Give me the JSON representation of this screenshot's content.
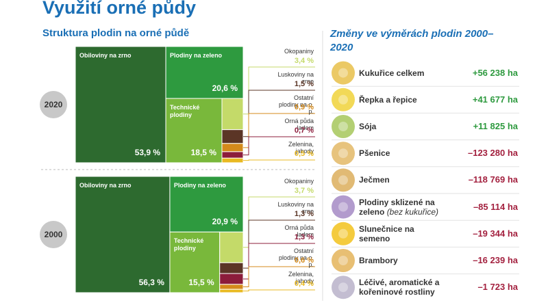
{
  "title": "Využití orné půdy",
  "left_title": "Struktura plodin na orné půdě",
  "chart_data": [
    {
      "type": "treemap",
      "label": "2020",
      "categories": [
        "Obiloviny na zrno",
        "Plodiny na zeleno",
        "Technické plodiny",
        "Okopaniny",
        "Luskoviny na zrno",
        "Ostatní plodiny na o. p.",
        "Orná půda ladem",
        "Zelenina, jahody"
      ],
      "values": [
        53.9,
        20.6,
        18.5,
        3.4,
        1.5,
        0.9,
        0.7,
        0.5
      ],
      "value_labels": [
        "53,9 %",
        "20,6 %",
        "18,5 %",
        "3,4 %",
        "1,5 %",
        "0,9 %",
        "0,7 %",
        "0,5 %"
      ],
      "colors": [
        "#2d6a2f",
        "#2e9a3f",
        "#79b83b",
        "#c4da69",
        "#5b3526",
        "#d48a1b",
        "#8c1c3b",
        "#e9b920"
      ]
    },
    {
      "type": "treemap",
      "label": "2000",
      "categories": [
        "Obiloviny na zrno",
        "Plodiny na zeleno",
        "Technické plodiny",
        "Okopaniny",
        "Luskoviny na zrno",
        "Orná půda ladem",
        "Ostatní plodiny na o. p.",
        "Zelenina, jahody"
      ],
      "values": [
        56.3,
        20.9,
        15.5,
        3.7,
        1.3,
        1.3,
        0.6,
        0.4
      ],
      "value_labels": [
        "56,3 %",
        "20,9 %",
        "15,5 %",
        "3,7 %",
        "1,3 %",
        "1,3 %",
        "0,6 %",
        "0,4 %"
      ],
      "colors": [
        "#2d6a2f",
        "#2e9a3f",
        "#79b83b",
        "#c4da69",
        "#5b3526",
        "#8c1c3b",
        "#d48a1b",
        "#e9b920"
      ]
    }
  ],
  "changes": {
    "title": "Změny ve výměrách plodin 2000–2020",
    "items": [
      {
        "name": "Kukuřice celkem",
        "value": "+56 238 ha",
        "color": "#2e9a3f",
        "icon": "#e8c04a"
      },
      {
        "name": "Řepka a řepice",
        "value": "+41 677 ha",
        "color": "#2e9a3f",
        "icon": "#f0d23a"
      },
      {
        "name": "Sója",
        "value": "+11 825 ha",
        "color": "#2e9a3f",
        "icon": "#a6c75a"
      },
      {
        "name": "Pšenice",
        "value": "–123 280 ha",
        "color": "#a3213f",
        "icon": "#e3b866"
      },
      {
        "name": "Ječmen",
        "value": "–118 769 ha",
        "color": "#a3213f",
        "icon": "#dcae5c"
      },
      {
        "name": "Plodiny sklizené na zeleno",
        "note": "(bez kukuřice)",
        "value": "–85 114 ha",
        "color": "#a3213f",
        "icon": "#a48ac4"
      },
      {
        "name": "Slunečnice na semeno",
        "value": "–19 344 ha",
        "color": "#a3213f",
        "icon": "#f2c21c"
      },
      {
        "name": "Brambory",
        "value": "–16 239 ha",
        "color": "#a3213f",
        "icon": "#e4b45a"
      },
      {
        "name": "Léčivé, aromatické a kořeninové rostliny",
        "value": "–1 723 ha",
        "color": "#a3213f",
        "icon": "#b9b2c9"
      }
    ]
  }
}
